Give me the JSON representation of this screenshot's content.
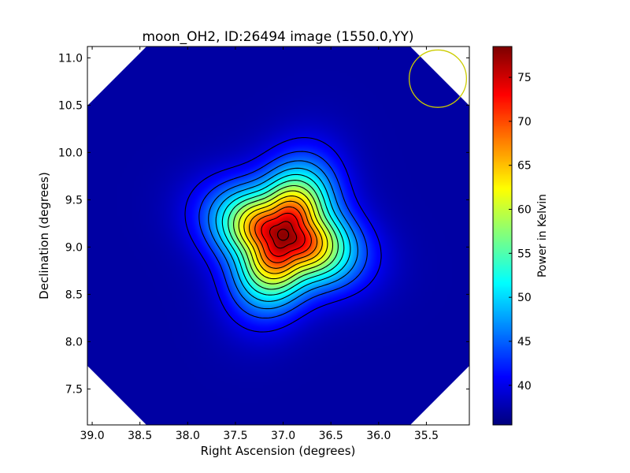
{
  "chart_data": {
    "type": "heatmap",
    "title": "moon_OH2, ID:26494 image (1550.0,YY)",
    "xlabel": "Right Ascension (degrees)",
    "ylabel": "Declination (degrees)",
    "colorbar_label": "Power in Kelvin",
    "xlim": [
      39.05,
      35.05
    ],
    "ylim": [
      7.12,
      11.12
    ],
    "x_ticks": [
      39.0,
      38.5,
      38.0,
      37.5,
      37.0,
      36.5,
      36.0,
      35.5
    ],
    "x_tick_labels": [
      "39.0",
      "38.5",
      "38.0",
      "37.5",
      "37.0",
      "36.5",
      "36.0",
      "35.5"
    ],
    "y_ticks": [
      7.5,
      8.0,
      8.5,
      9.0,
      9.5,
      10.0,
      10.5,
      11.0
    ],
    "y_tick_labels": [
      "7.5",
      "8.0",
      "8.5",
      "9.0",
      "9.5",
      "10.0",
      "10.5",
      "11.0"
    ],
    "colorbar_range": [
      35.5,
      78.5
    ],
    "colorbar_ticks": [
      40,
      45,
      50,
      55,
      60,
      65,
      70,
      75
    ],
    "colorbar_tick_labels": [
      "40",
      "45",
      "50",
      "55",
      "60",
      "65",
      "70",
      "75"
    ],
    "colormap": "jet",
    "background_level": 37,
    "source": {
      "ra": 37.0,
      "dec": 9.13,
      "peak": 78
    },
    "contour_levels": [
      40,
      43,
      46,
      49,
      52,
      55,
      58,
      61,
      64,
      67,
      70,
      73,
      76
    ],
    "marker_circle": {
      "ra": 37.0,
      "dec": 9.13,
      "color": "#000000"
    },
    "beam_circle": {
      "ra": 35.38,
      "dec": 10.78,
      "radius_deg": 0.3,
      "color": "#cccc00"
    },
    "grid": false
  }
}
